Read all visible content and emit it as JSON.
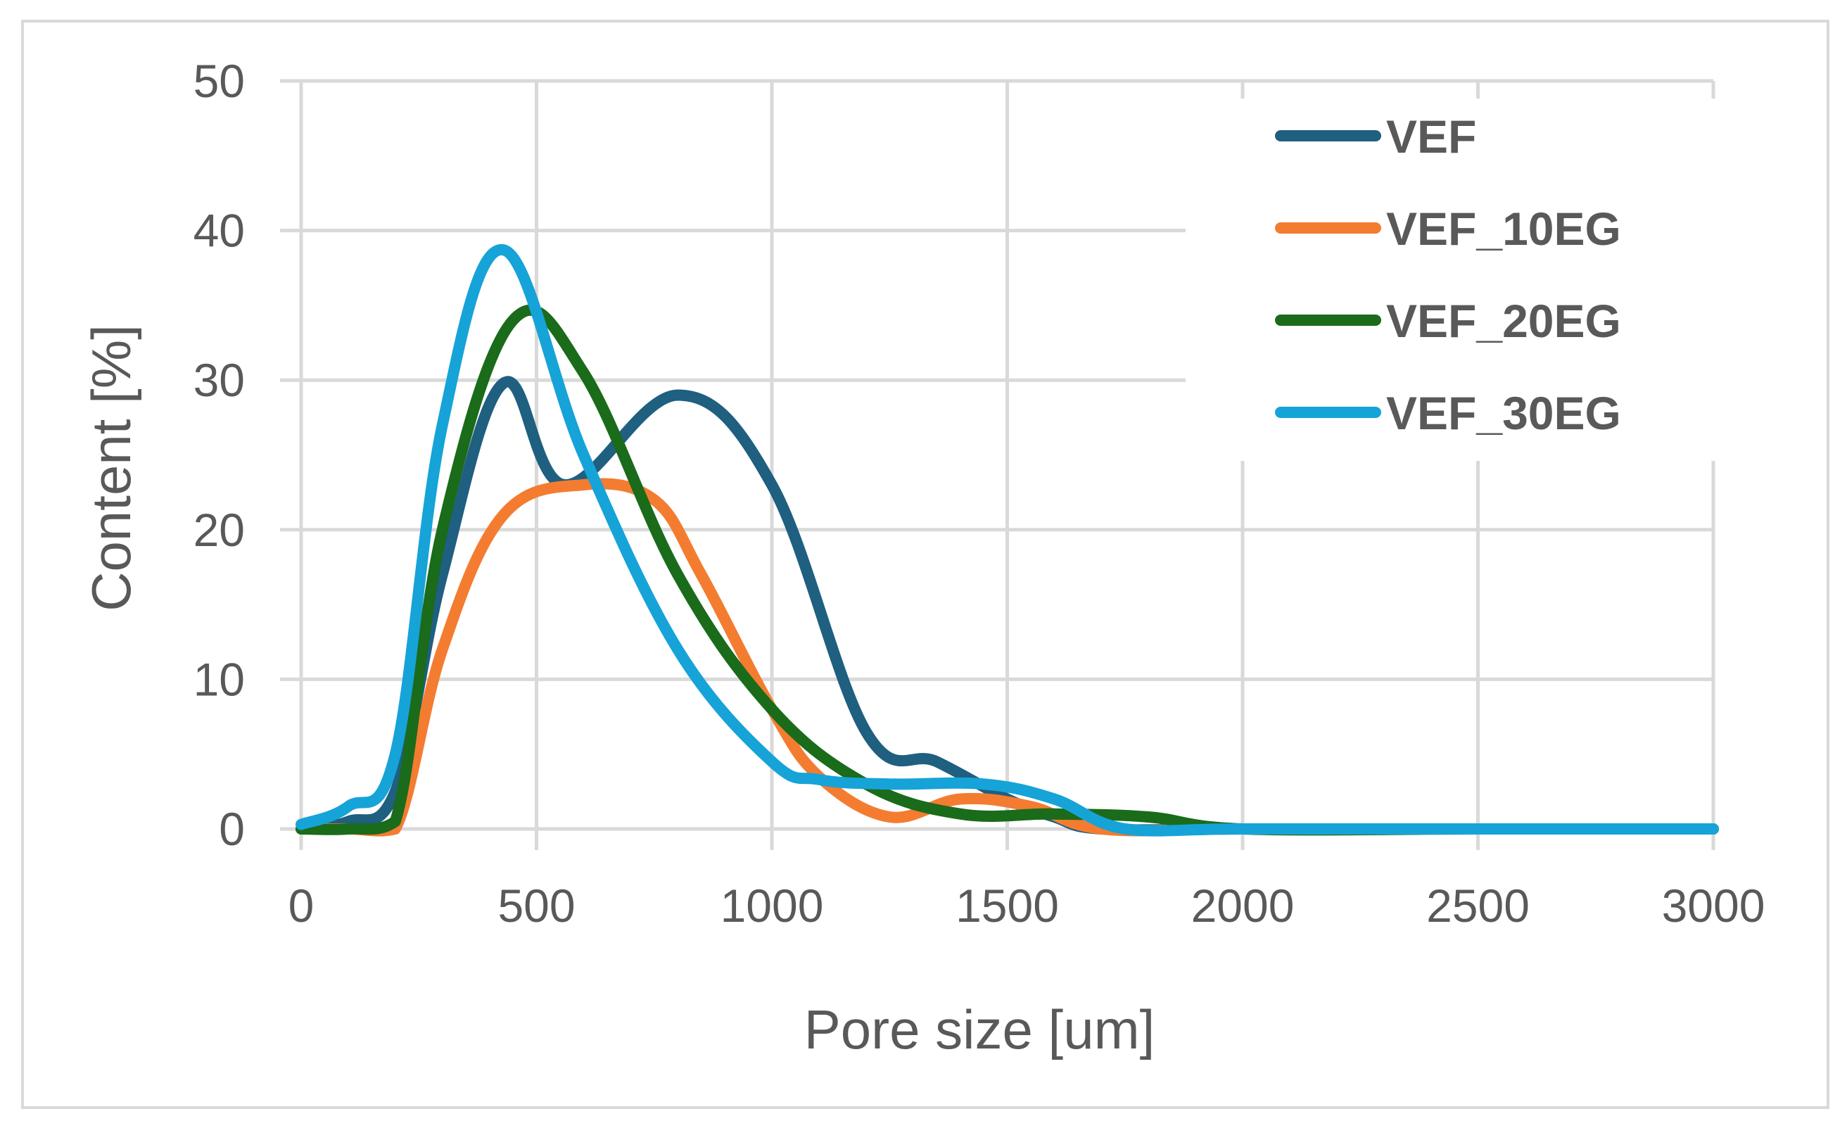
{
  "chart_data": {
    "type": "line",
    "title": "",
    "xlabel": "Pore size [um]",
    "ylabel": "Content [%]",
    "xlim": [
      0,
      3000
    ],
    "ylim": [
      0,
      50
    ],
    "x_ticks": [
      0,
      500,
      1000,
      1500,
      2000,
      2500,
      3000
    ],
    "y_ticks": [
      0,
      10,
      20,
      30,
      40,
      50
    ],
    "grid": true,
    "legend_position": "top-right",
    "series": [
      {
        "name": "VEF",
        "color": "#1f5f80",
        "x": [
          0,
          100,
          200,
          300,
          430,
          560,
          800,
          1000,
          1200,
          1350,
          1500,
          1600,
          1700,
          2000,
          2500,
          3000
        ],
        "y": [
          0,
          0.5,
          2.5,
          17,
          29.8,
          23,
          29,
          23,
          6.5,
          4.5,
          2,
          0.8,
          0,
          0,
          0,
          0
        ]
      },
      {
        "name": "VEF_10EG",
        "color": "#f47c30",
        "x": [
          0,
          100,
          200,
          300,
          430,
          600,
          750,
          850,
          1000,
          1100,
          1250,
          1400,
          1550,
          1700,
          2000,
          2500,
          3000
        ],
        "y": [
          0,
          0,
          0,
          12,
          21,
          23,
          22,
          17,
          8,
          3.5,
          0.8,
          2,
          1.5,
          0,
          0,
          0,
          0
        ]
      },
      {
        "name": "VEF_20EG",
        "color": "#1a6b1a",
        "x": [
          0,
          100,
          200,
          300,
          450,
          600,
          800,
          1000,
          1200,
          1400,
          1600,
          1800,
          2000,
          2500,
          3000
        ],
        "y": [
          0,
          0,
          0.5,
          20,
          34,
          30.5,
          17,
          8,
          3,
          1,
          1,
          0.8,
          0,
          0,
          0
        ]
      },
      {
        "name": "VEF_30EG",
        "color": "#16a3d8",
        "x": [
          0,
          100,
          200,
          300,
          430,
          600,
          800,
          1000,
          1100,
          1250,
          1450,
          1600,
          1750,
          2000,
          2500,
          3000
        ],
        "y": [
          0.3,
          1.5,
          5,
          27,
          38.7,
          25,
          12,
          4.5,
          3.3,
          3,
          3,
          2,
          0,
          0,
          0,
          0
        ]
      }
    ]
  }
}
